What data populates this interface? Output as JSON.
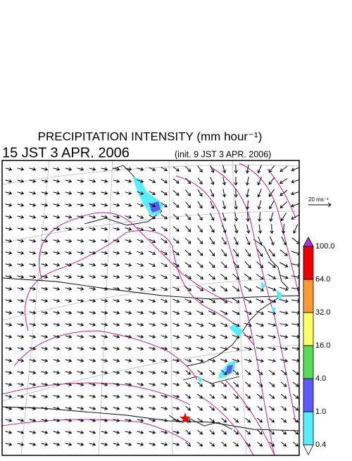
{
  "header": {
    "title": "PRECIPITATION INTENSITY (mm hour⁻¹)",
    "valid_time": "15 JST 3 APR. 2006",
    "init_time": "(init. 9 JST 3 APR. 2006)"
  },
  "wind_scale": {
    "label": "20 ms⁻¹"
  },
  "colorbar": {
    "levels": [
      "0.4",
      "1.0",
      "4.0",
      "16.0",
      "32.0",
      "64.0",
      "100.0"
    ],
    "colors": [
      "#55eeff",
      "#5a5aff",
      "#55dd55",
      "#ffff66",
      "#ff9933",
      "#ee0000"
    ],
    "over_color": "#aa33ee",
    "under_color": "#ffffff"
  }
}
